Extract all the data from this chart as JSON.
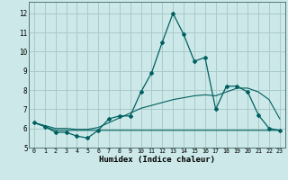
{
  "xlabel": "Humidex (Indice chaleur)",
  "background_color": "#cce8e8",
  "grid_color": "#aacaca",
  "line_color": "#006060",
  "xlim": [
    -0.5,
    23.5
  ],
  "ylim": [
    5.0,
    12.6
  ],
  "yticks": [
    5,
    6,
    7,
    8,
    9,
    10,
    11,
    12
  ],
  "xticks": [
    0,
    1,
    2,
    3,
    4,
    5,
    6,
    7,
    8,
    9,
    10,
    11,
    12,
    13,
    14,
    15,
    16,
    17,
    18,
    19,
    20,
    21,
    22,
    23
  ],
  "line1_x": [
    0,
    1,
    2,
    3,
    4,
    5,
    6,
    7,
    8,
    9,
    10,
    11,
    12,
    13,
    14,
    15,
    16,
    17,
    18,
    19,
    20,
    21,
    22,
    23
  ],
  "line1_y": [
    6.3,
    6.1,
    5.8,
    5.8,
    5.6,
    5.5,
    5.9,
    6.5,
    6.65,
    6.65,
    7.9,
    8.9,
    10.5,
    12.0,
    10.9,
    9.5,
    9.7,
    7.0,
    8.2,
    8.2,
    7.9,
    6.7,
    6.0,
    5.9
  ],
  "line2_x": [
    0,
    1,
    2,
    3,
    4,
    5,
    6,
    7,
    8,
    9,
    10,
    11,
    12,
    13,
    14,
    15,
    16,
    17,
    18,
    19,
    20,
    21,
    22,
    23
  ],
  "line2_y": [
    6.3,
    6.15,
    6.0,
    6.0,
    5.95,
    5.95,
    6.05,
    6.3,
    6.55,
    6.8,
    7.05,
    7.2,
    7.35,
    7.5,
    7.6,
    7.7,
    7.75,
    7.7,
    7.9,
    8.1,
    8.1,
    7.9,
    7.5,
    6.5
  ],
  "line3_x": [
    0,
    1,
    2,
    3,
    4,
    5,
    6,
    7,
    8,
    9,
    10,
    11,
    12,
    13,
    14,
    15,
    16,
    17,
    18,
    19,
    20,
    21,
    22,
    23
  ],
  "line3_y": [
    6.3,
    6.1,
    5.9,
    5.9,
    5.9,
    5.9,
    5.9,
    5.9,
    5.9,
    5.9,
    5.9,
    5.9,
    5.9,
    5.9,
    5.9,
    5.9,
    5.9,
    5.9,
    5.9,
    5.9,
    5.9,
    5.9,
    5.9,
    5.9
  ]
}
